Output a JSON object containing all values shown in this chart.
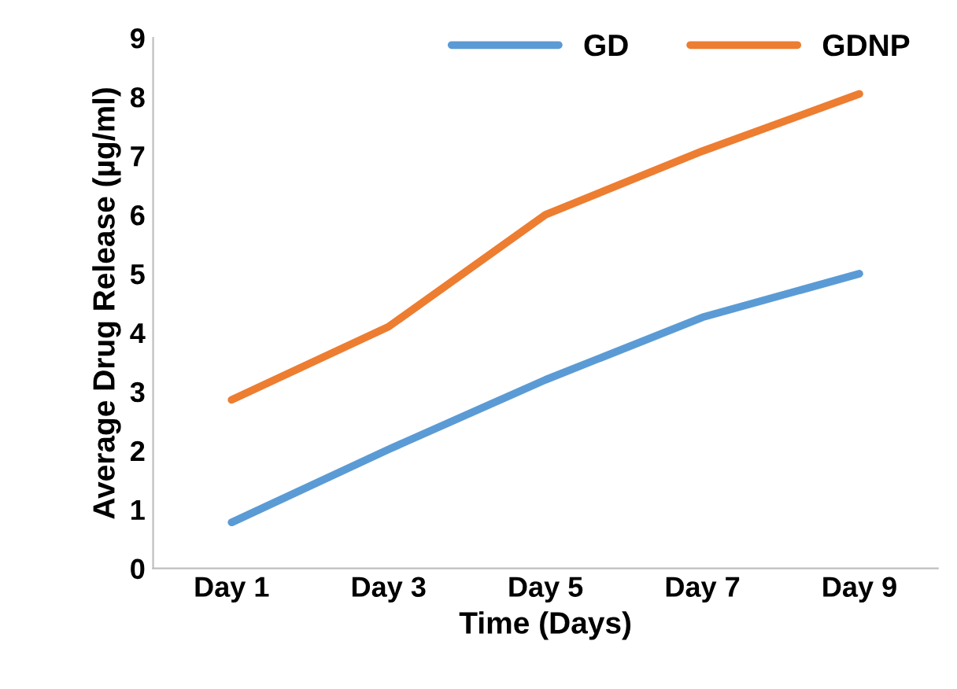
{
  "chart_data": {
    "type": "line",
    "xlabel": "Time (Days)",
    "ylabel": "Average Drug Release (µg/ml)",
    "categories": [
      "Day 1",
      "Day 3",
      "Day 5",
      "Day 7",
      "Day 9"
    ],
    "series": [
      {
        "name": "GD",
        "color": "#5b9bd5",
        "values": [
          0.78,
          2.02,
          3.2,
          4.26,
          5.0
        ]
      },
      {
        "name": "GDNP",
        "color": "#ed7d31",
        "values": [
          2.86,
          4.1,
          6.0,
          7.08,
          8.05
        ]
      }
    ],
    "ylim": [
      0,
      9
    ],
    "yticks": [
      0,
      1,
      2,
      3,
      4,
      5,
      6,
      7,
      8,
      9
    ],
    "grid": false,
    "legend": "top right",
    "marker": "none",
    "line_style": "solid"
  }
}
